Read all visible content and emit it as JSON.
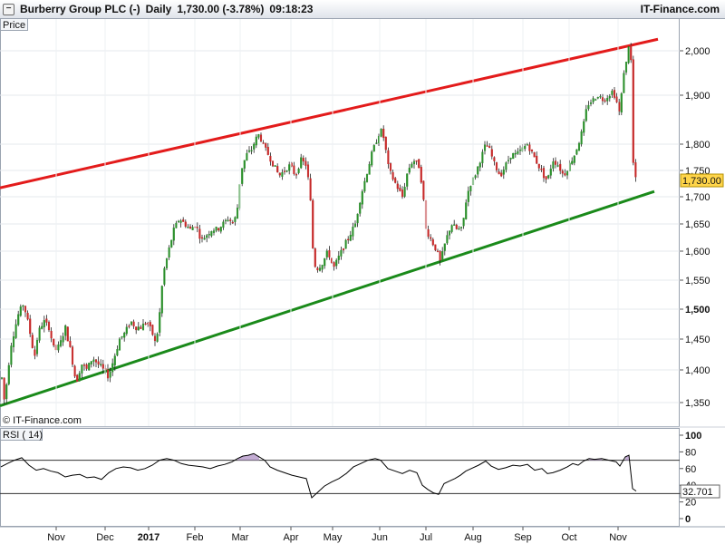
{
  "header": {
    "instrument": "Burberry Group PLC (-)",
    "period": "Daily",
    "quote": "1,730.00 (-3.78%)",
    "time": "09:18:23",
    "brand": "IT-Finance.com"
  },
  "price_panel": {
    "label": "Price",
    "watermark": "© IT-Finance.com",
    "last_label": "1,730.00"
  },
  "rsi_panel": {
    "label": "RSI ( 14)",
    "last_label": "32.701"
  },
  "colors": {
    "up": "#2b8f2b",
    "down": "#c62828",
    "resistance": "#e31b1b",
    "support": "#1a8a1a",
    "rsi_line": "#000000",
    "overbought_fill": "#b497c8"
  },
  "chart_data": [
    {
      "type": "candlestick",
      "title": "Burberry Group PLC (-) Daily",
      "y_axis_title": "Price",
      "y_ticks": [
        "1,350",
        "1,400",
        "1,450",
        "1,500",
        "1,550",
        "1,600",
        "1,650",
        "1,700",
        "1,750",
        "1,800",
        "1,900",
        "2,000"
      ],
      "x_ticks": [
        "Nov",
        "Dec",
        "2017",
        "Feb",
        "Mar",
        "Apr",
        "May",
        "Jun",
        "Jul",
        "Aug",
        "Sep",
        "Oct",
        "Nov"
      ],
      "last_value": 1730,
      "price_path": [
        [
          1,
          1400
        ],
        [
          5,
          1350
        ],
        [
          12,
          1440
        ],
        [
          20,
          1490
        ],
        [
          26,
          1510
        ],
        [
          32,
          1470
        ],
        [
          38,
          1420
        ],
        [
          42,
          1460
        ],
        [
          48,
          1480
        ],
        [
          54,
          1470
        ],
        [
          60,
          1430
        ],
        [
          66,
          1440
        ],
        [
          72,
          1470
        ],
        [
          78,
          1430
        ],
        [
          84,
          1380
        ],
        [
          90,
          1410
        ],
        [
          96,
          1400
        ],
        [
          102,
          1420
        ],
        [
          108,
          1410
        ],
        [
          114,
          1400
        ],
        [
          120,
          1390
        ],
        [
          126,
          1420
        ],
        [
          132,
          1450
        ],
        [
          138,
          1460
        ],
        [
          144,
          1480
        ],
        [
          150,
          1470
        ],
        [
          156,
          1470
        ],
        [
          162,
          1480
        ],
        [
          168,
          1460
        ],
        [
          172,
          1440
        ],
        [
          176,
          1490
        ],
        [
          180,
          1560
        ],
        [
          186,
          1600
        ],
        [
          192,
          1640
        ],
        [
          198,
          1660
        ],
        [
          204,
          1650
        ],
        [
          210,
          1640
        ],
        [
          216,
          1650
        ],
        [
          222,
          1620
        ],
        [
          228,
          1630
        ],
        [
          234,
          1640
        ],
        [
          240,
          1640
        ],
        [
          246,
          1650
        ],
        [
          252,
          1660
        ],
        [
          258,
          1650
        ],
        [
          262,
          1680
        ],
        [
          266,
          1750
        ],
        [
          272,
          1780
        ],
        [
          278,
          1790
        ],
        [
          282,
          1810
        ],
        [
          286,
          1820
        ],
        [
          290,
          1800
        ],
        [
          296,
          1780
        ],
        [
          302,
          1760
        ],
        [
          308,
          1740
        ],
        [
          314,
          1750
        ],
        [
          320,
          1760
        ],
        [
          326,
          1740
        ],
        [
          332,
          1770
        ],
        [
          338,
          1760
        ],
        [
          342,
          1710
        ],
        [
          346,
          1580
        ],
        [
          350,
          1570
        ],
        [
          356,
          1580
        ],
        [
          362,
          1600
        ],
        [
          368,
          1570
        ],
        [
          374,
          1590
        ],
        [
          380,
          1610
        ],
        [
          386,
          1630
        ],
        [
          392,
          1650
        ],
        [
          398,
          1700
        ],
        [
          404,
          1740
        ],
        [
          410,
          1780
        ],
        [
          416,
          1810
        ],
        [
          420,
          1830
        ],
        [
          424,
          1810
        ],
        [
          428,
          1760
        ],
        [
          432,
          1740
        ],
        [
          438,
          1720
        ],
        [
          444,
          1700
        ],
        [
          450,
          1750
        ],
        [
          456,
          1770
        ],
        [
          462,
          1760
        ],
        [
          466,
          1720
        ],
        [
          470,
          1640
        ],
        [
          476,
          1620
        ],
        [
          482,
          1600
        ],
        [
          486,
          1580
        ],
        [
          492,
          1620
        ],
        [
          498,
          1650
        ],
        [
          504,
          1640
        ],
        [
          510,
          1640
        ],
        [
          514,
          1690
        ],
        [
          518,
          1720
        ],
        [
          524,
          1740
        ],
        [
          530,
          1770
        ],
        [
          536,
          1800
        ],
        [
          540,
          1790
        ],
        [
          546,
          1760
        ],
        [
          552,
          1740
        ],
        [
          558,
          1760
        ],
        [
          564,
          1780
        ],
        [
          570,
          1780
        ],
        [
          576,
          1790
        ],
        [
          582,
          1800
        ],
        [
          588,
          1780
        ],
        [
          594,
          1760
        ],
        [
          600,
          1740
        ],
        [
          604,
          1730
        ],
        [
          610,
          1770
        ],
        [
          616,
          1760
        ],
        [
          622,
          1740
        ],
        [
          628,
          1760
        ],
        [
          634,
          1780
        ],
        [
          640,
          1810
        ],
        [
          644,
          1840
        ],
        [
          648,
          1880
        ],
        [
          654,
          1890
        ],
        [
          660,
          1900
        ],
        [
          666,
          1890
        ],
        [
          672,
          1900
        ],
        [
          676,
          1910
        ],
        [
          680,
          1890
        ],
        [
          684,
          1860
        ],
        [
          688,
          1950
        ],
        [
          692,
          1980
        ],
        [
          694,
          2020
        ],
        [
          696,
          2000
        ],
        [
          698,
          1780
        ],
        [
          700,
          1740
        ],
        [
          702,
          1730
        ]
      ],
      "trendlines": [
        {
          "name": "resistance",
          "from": [
            0,
            1717
          ],
          "to": [
            726,
            2026
          ]
        },
        {
          "name": "support",
          "from": [
            0,
            1345
          ],
          "to": [
            722,
            1710
          ]
        }
      ]
    },
    {
      "type": "line",
      "title": "RSI ( 14)",
      "y_ticks": [
        "0",
        "20",
        "30",
        "40",
        "60",
        "80",
        "100"
      ],
      "ylim": [
        0,
        100
      ],
      "reference_lines": [
        70,
        30
      ],
      "last_value": 32.701,
      "values": [
        [
          1,
          62
        ],
        [
          8,
          66
        ],
        [
          16,
          70
        ],
        [
          24,
          73
        ],
        [
          32,
          64
        ],
        [
          40,
          58
        ],
        [
          48,
          60
        ],
        [
          56,
          57
        ],
        [
          64,
          55
        ],
        [
          72,
          50
        ],
        [
          80,
          52
        ],
        [
          88,
          53
        ],
        [
          96,
          49
        ],
        [
          104,
          50
        ],
        [
          112,
          47
        ],
        [
          120,
          55
        ],
        [
          128,
          60
        ],
        [
          136,
          62
        ],
        [
          144,
          61
        ],
        [
          152,
          58
        ],
        [
          160,
          60
        ],
        [
          168,
          64
        ],
        [
          176,
          70
        ],
        [
          184,
          72
        ],
        [
          192,
          70
        ],
        [
          200,
          66
        ],
        [
          208,
          64
        ],
        [
          216,
          63
        ],
        [
          224,
          62
        ],
        [
          232,
          60
        ],
        [
          240,
          63
        ],
        [
          248,
          65
        ],
        [
          256,
          68
        ],
        [
          262,
          72
        ],
        [
          268,
          75
        ],
        [
          274,
          76
        ],
        [
          280,
          78
        ],
        [
          286,
          74
        ],
        [
          292,
          70
        ],
        [
          298,
          62
        ],
        [
          306,
          58
        ],
        [
          314,
          55
        ],
        [
          322,
          52
        ],
        [
          330,
          50
        ],
        [
          338,
          48
        ],
        [
          344,
          25
        ],
        [
          350,
          31
        ],
        [
          358,
          39
        ],
        [
          366,
          44
        ],
        [
          374,
          48
        ],
        [
          382,
          54
        ],
        [
          390,
          62
        ],
        [
          398,
          66
        ],
        [
          406,
          70
        ],
        [
          414,
          72
        ],
        [
          420,
          70
        ],
        [
          428,
          60
        ],
        [
          436,
          57
        ],
        [
          444,
          54
        ],
        [
          452,
          58
        ],
        [
          460,
          55
        ],
        [
          466,
          40
        ],
        [
          472,
          35
        ],
        [
          478,
          31
        ],
        [
          484,
          29
        ],
        [
          490,
          42
        ],
        [
          496,
          45
        ],
        [
          502,
          48
        ],
        [
          508,
          52
        ],
        [
          514,
          57
        ],
        [
          520,
          60
        ],
        [
          528,
          64
        ],
        [
          536,
          69
        ],
        [
          542,
          63
        ],
        [
          550,
          59
        ],
        [
          558,
          61
        ],
        [
          566,
          64
        ],
        [
          574,
          63
        ],
        [
          582,
          65
        ],
        [
          590,
          58
        ],
        [
          598,
          60
        ],
        [
          604,
          54
        ],
        [
          610,
          55
        ],
        [
          618,
          58
        ],
        [
          626,
          62
        ],
        [
          632,
          66
        ],
        [
          638,
          64
        ],
        [
          644,
          69
        ],
        [
          650,
          72
        ],
        [
          656,
          71
        ],
        [
          664,
          72
        ],
        [
          672,
          70
        ],
        [
          680,
          68
        ],
        [
          684,
          63
        ],
        [
          690,
          74
        ],
        [
          694,
          76
        ],
        [
          698,
          36
        ],
        [
          702,
          33
        ]
      ]
    }
  ]
}
